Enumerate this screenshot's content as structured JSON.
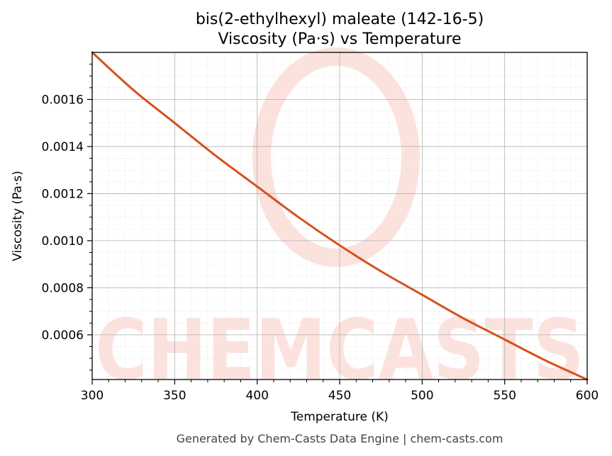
{
  "chart_data": {
    "type": "line",
    "title": "bis(2-ethylhexyl) maleate (142-16-5)",
    "subtitle": "Viscosity (Pa·s) vs Temperature",
    "xlabel": "Temperature (K)",
    "ylabel": "Viscosity (Pa·s)",
    "xlim": [
      300,
      600
    ],
    "ylim": [
      0.00041,
      0.0018
    ],
    "x_ticks": [
      300,
      350,
      400,
      450,
      500,
      550,
      600
    ],
    "y_ticks": [
      0.0006,
      0.0008,
      0.001,
      0.0012,
      0.0014,
      0.0016
    ],
    "y_tick_labels": [
      "0.0006",
      "0.0008",
      "0.0010",
      "0.0012",
      "0.0014",
      "0.0016"
    ],
    "grid": true,
    "line_color": "#d5511e",
    "series": [
      {
        "x": [
          300,
          325,
          350,
          375,
          400,
          425,
          450,
          475,
          500,
          525,
          550,
          575,
          600
        ],
        "values": [
          0.0018,
          0.00164,
          0.0015,
          0.00136,
          0.00123,
          0.0011,
          0.00098,
          0.00087,
          0.00077,
          0.00067,
          0.00058,
          0.00049,
          0.00041
        ]
      }
    ]
  },
  "watermark": "CHEMCASTS",
  "footer": "Generated by Chem-Casts Data Engine | chem-casts.com"
}
